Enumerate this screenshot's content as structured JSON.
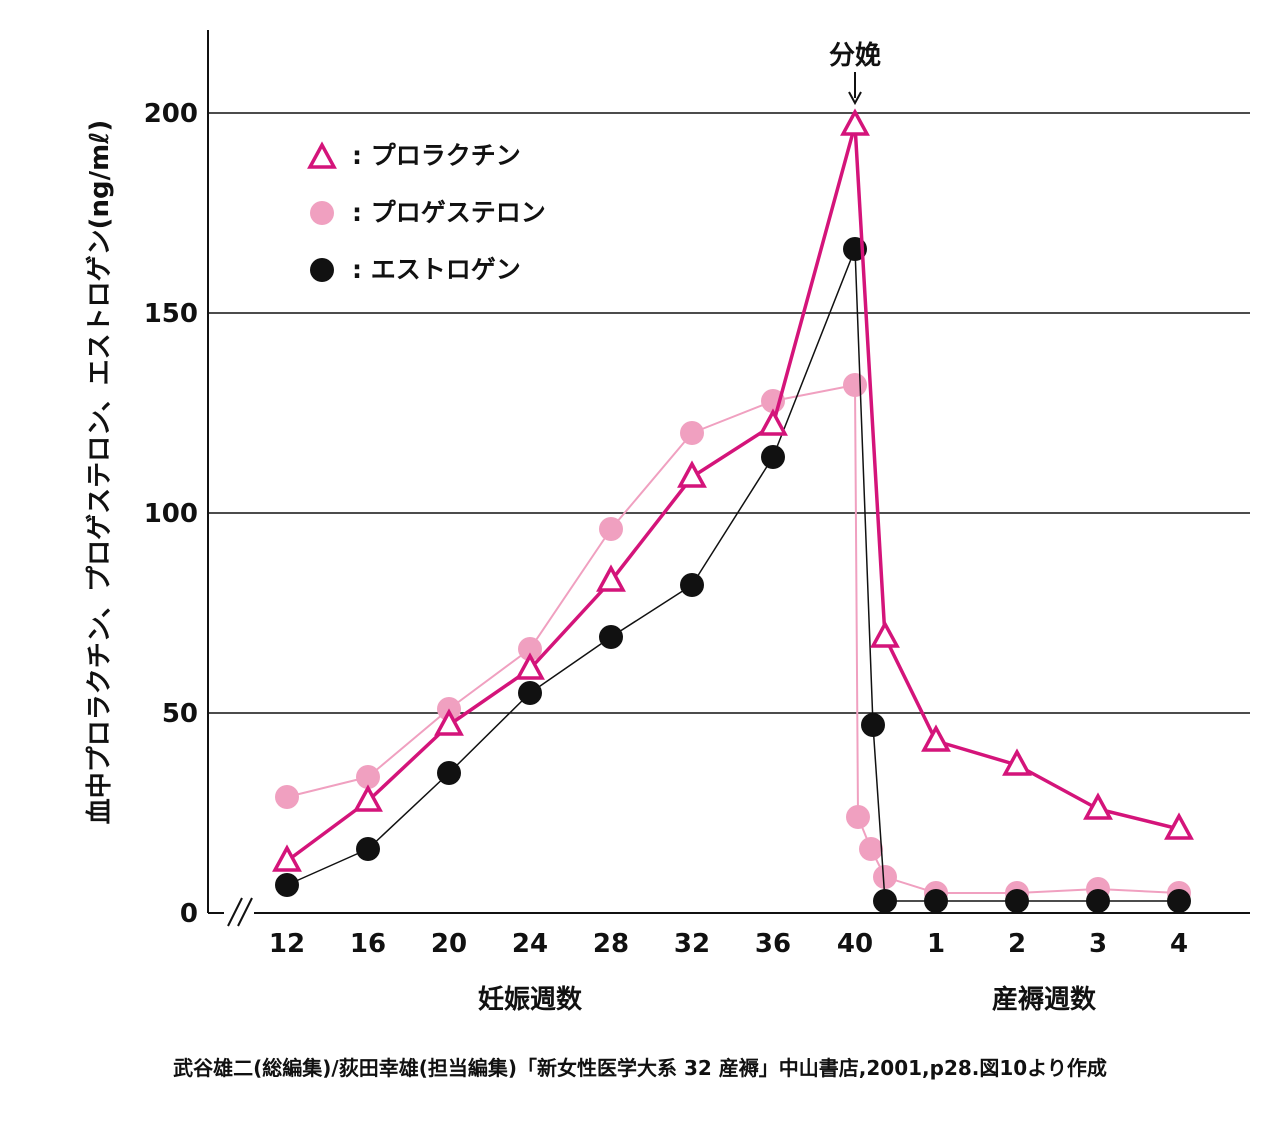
{
  "chart_data": {
    "type": "line",
    "ylabel": "血中プロラクチン、プロゲステロン、エストロゲン(ng/mℓ)",
    "ylim": [
      0,
      220
    ],
    "yticks": [
      "0",
      "50",
      "100",
      "150",
      "200"
    ],
    "grid": true,
    "x_tick_labels": [
      "12",
      "16",
      "20",
      "24",
      "28",
      "32",
      "36",
      "40",
      "1",
      "2",
      "3",
      "4"
    ],
    "x_group_labels": [
      "妊娠週数",
      "産褥週数"
    ],
    "annotation": {
      "text": "分娩",
      "at_x": "40"
    },
    "legend_position": "top-left",
    "series": [
      {
        "name": ": プロラクチン",
        "marker": "triangle",
        "color": "#d4147a",
        "points": [
          {
            "x": "12",
            "y": 13
          },
          {
            "x": "16",
            "y": 28
          },
          {
            "x": "20",
            "y": 47
          },
          {
            "x": "24",
            "y": 61
          },
          {
            "x": "28",
            "y": 83
          },
          {
            "x": "32",
            "y": 109
          },
          {
            "x": "36",
            "y": 122
          },
          {
            "x": "40",
            "y": 197
          },
          {
            "x": "40+",
            "y": 69
          },
          {
            "x": "1",
            "y": 43
          },
          {
            "x": "2",
            "y": 37
          },
          {
            "x": "3",
            "y": 26
          },
          {
            "x": "4",
            "y": 21
          }
        ]
      },
      {
        "name": ": プロゲステロン",
        "marker": "circle",
        "color": "#f0a0c0",
        "points": [
          {
            "x": "12",
            "y": 29
          },
          {
            "x": "16",
            "y": 34
          },
          {
            "x": "20",
            "y": 51
          },
          {
            "x": "24",
            "y": 66
          },
          {
            "x": "28",
            "y": 96
          },
          {
            "x": "32",
            "y": 120
          },
          {
            "x": "36",
            "y": 128
          },
          {
            "x": "40",
            "y": 132
          },
          {
            "x": "40+",
            "y": 24
          },
          {
            "x": "40+",
            "y": 16
          },
          {
            "x": "40+",
            "y": 9
          },
          {
            "x": "1",
            "y": 5
          },
          {
            "x": "2",
            "y": 5
          },
          {
            "x": "3",
            "y": 6
          },
          {
            "x": "4",
            "y": 5
          }
        ]
      },
      {
        "name": ": エストロゲン",
        "marker": "filled-circle",
        "color": "#111111",
        "points": [
          {
            "x": "12",
            "y": 7
          },
          {
            "x": "16",
            "y": 16
          },
          {
            "x": "20",
            "y": 35
          },
          {
            "x": "24",
            "y": 55
          },
          {
            "x": "28",
            "y": 69
          },
          {
            "x": "32",
            "y": 82
          },
          {
            "x": "36",
            "y": 114
          },
          {
            "x": "40",
            "y": 166
          },
          {
            "x": "40+",
            "y": 47
          },
          {
            "x": "40+",
            "y": 3
          },
          {
            "x": "1",
            "y": 3
          },
          {
            "x": "2",
            "y": 3
          },
          {
            "x": "3",
            "y": 3
          },
          {
            "x": "4",
            "y": 3
          }
        ]
      }
    ]
  },
  "source": "武谷雄二(総編集)/荻田幸雄(担当編集)「新女性医学大系 32 産褥」中山書店,2001,p28.図10より作成"
}
